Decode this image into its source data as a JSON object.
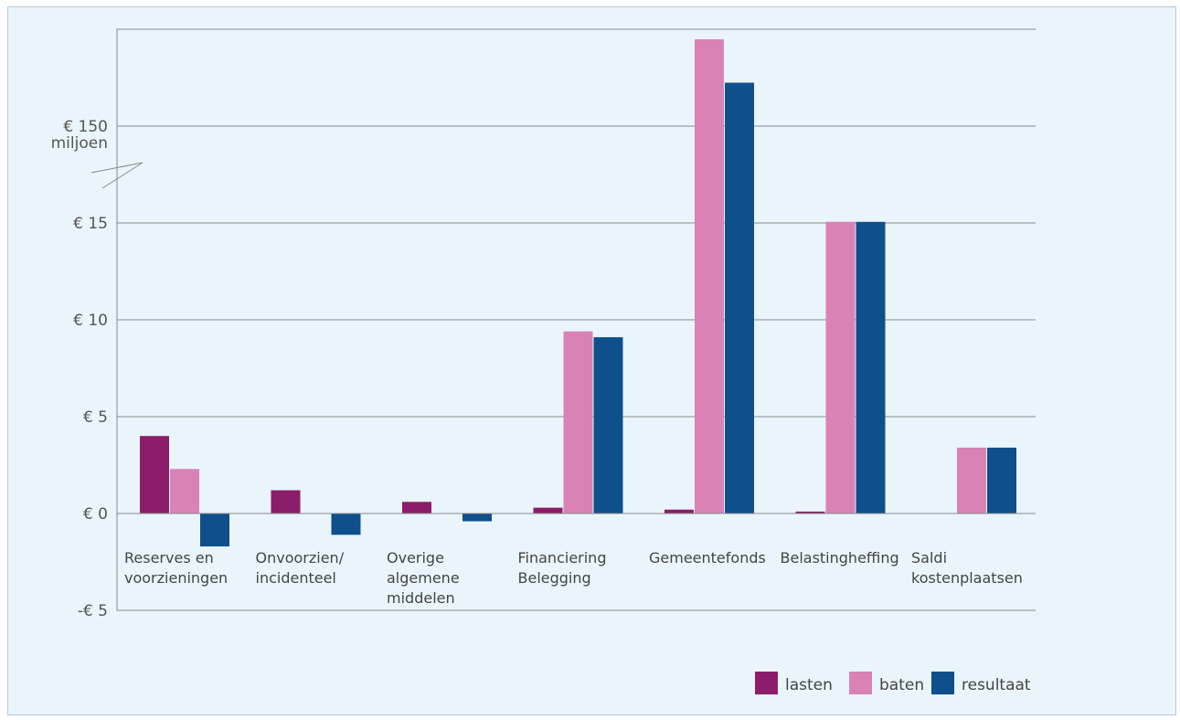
{
  "chart_data": {
    "type": "bar",
    "categories": [
      [
        "Reserves en",
        "voorzieningen"
      ],
      [
        "Onvoorzien/",
        "incidenteel"
      ],
      [
        "Overige",
        "algemene",
        "middelen"
      ],
      [
        "Financiering",
        "Belegging"
      ],
      [
        "Gemeentefonds"
      ],
      [
        "Belastingheffing"
      ],
      [
        "Saldi",
        "kostenplaatsen"
      ]
    ],
    "series": [
      {
        "name": "lasten",
        "color": "#8c1d6b",
        "values": [
          4.0,
          1.2,
          0.6,
          0.3,
          0.2,
          0.1,
          0.0
        ]
      },
      {
        "name": "baten",
        "color": "#d982b5",
        "values": [
          2.3,
          0.0,
          0.0,
          9.4,
          160,
          16.6,
          3.4
        ]
      },
      {
        "name": "resultaat",
        "color": "#0e4f8c",
        "values": [
          -1.7,
          -1.1,
          -0.4,
          9.1,
          155,
          16.5,
          3.4
        ]
      }
    ],
    "y_axis": {
      "ticks": [
        {
          "value": -5,
          "label": "-€ 5"
        },
        {
          "value": 0,
          "label": "€ 0"
        },
        {
          "value": 5,
          "label": "€ 5"
        },
        {
          "value": 10,
          "label": "€ 10"
        },
        {
          "value": 15,
          "label": "€ 15"
        },
        {
          "value": 150,
          "label": "€ 150"
        }
      ],
      "unit_label": "miljoen",
      "scale_break": "between 15 and 150"
    },
    "legend_position": "bottom-right",
    "grid": true
  }
}
